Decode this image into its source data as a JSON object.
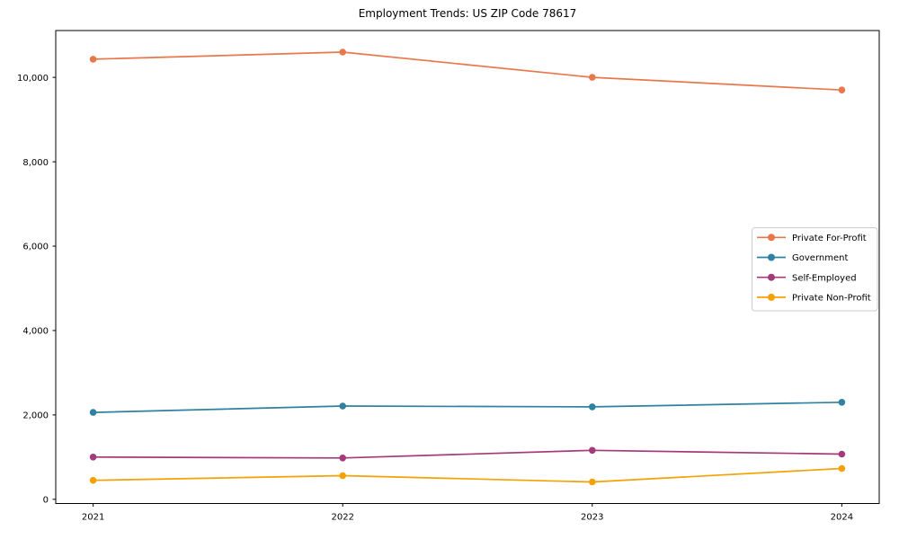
{
  "chart_data": {
    "type": "line",
    "title": "Employment Trends: US ZIP Code 78617",
    "x": [
      2021,
      2022,
      2023,
      2024
    ],
    "x_tick_labels": [
      "2021",
      "2022",
      "2023",
      "2024"
    ],
    "series": [
      {
        "name": "Private For-Profit",
        "color": "#E8784B",
        "values": [
          10430,
          10600,
          10000,
          9700
        ]
      },
      {
        "name": "Government",
        "color": "#2E81A0",
        "values": [
          2060,
          2210,
          2190,
          2300
        ]
      },
      {
        "name": "Self-Employed",
        "color": "#A53A7B",
        "values": [
          1000,
          980,
          1160,
          1070
        ]
      },
      {
        "name": "Private Non-Profit",
        "color": "#F5A103",
        "values": [
          450,
          560,
          410,
          730
        ]
      }
    ],
    "xlim": [
      2020.85,
      2024.15
    ],
    "ylim": [
      -100,
      11110
    ],
    "yticks": {
      "values": [
        0,
        2000,
        4000,
        6000,
        8000,
        10000
      ],
      "labels": [
        "0",
        "2,000",
        "4,000",
        "6,000",
        "8,000",
        "10,000"
      ]
    },
    "legend": {
      "position": "center-right",
      "entries": [
        "Private For-Profit",
        "Government",
        "Self-Employed",
        "Private Non-Profit"
      ]
    },
    "grid": false,
    "marker": "circle",
    "axis_color": "#000000",
    "legend_border_color": "#cccccc"
  }
}
